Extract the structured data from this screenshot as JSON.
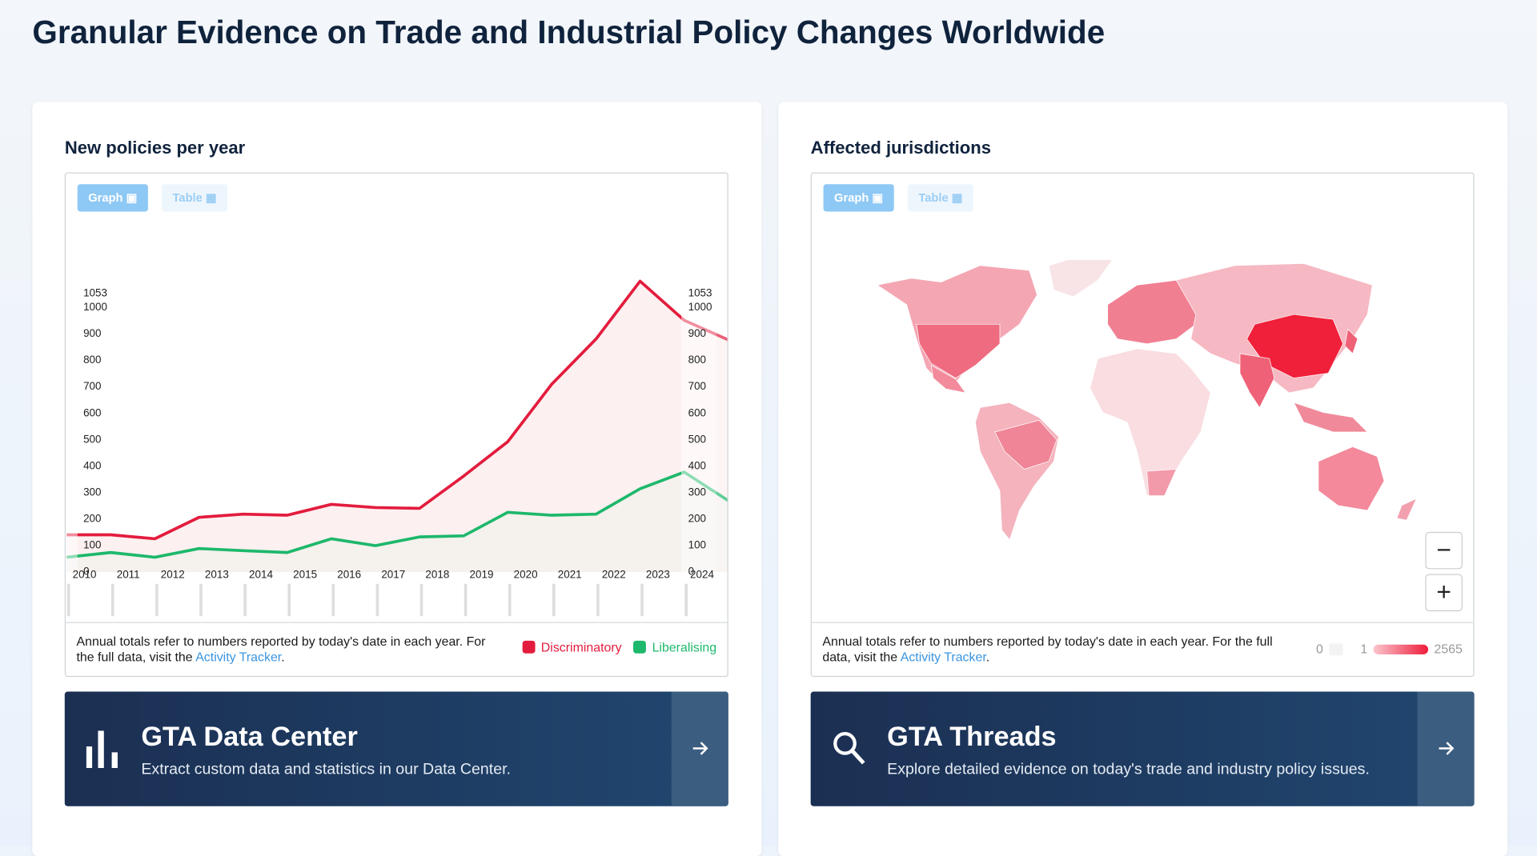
{
  "header": {
    "title": "Granular Evidence on Trade and Industrial Policy Changes Worldwide"
  },
  "chart_data": {
    "type": "line",
    "title": "New policies per year",
    "categories": [
      "2010",
      "2011",
      "2012",
      "2013",
      "2014",
      "2015",
      "2016",
      "2017",
      "2018",
      "2019",
      "2020",
      "2021",
      "2022",
      "2023",
      "2024",
      null
    ],
    "series": [
      {
        "name": "Discriminatory",
        "color": "#e31c3d",
        "values": [
          141,
          141,
          126,
          207,
          219,
          215,
          256,
          244,
          241,
          363,
          493,
          711,
          881,
          1100,
          952,
          878
        ]
      },
      {
        "name": "Liberalising",
        "color": "#1db86b",
        "values": [
          56,
          74,
          56,
          89,
          81,
          74,
          126,
          100,
          133,
          137,
          226,
          215,
          219,
          315,
          378,
          270
        ]
      }
    ],
    "ylim": [
      0,
      1053
    ],
    "yticks": [
      0,
      100,
      200,
      300,
      400,
      500,
      600,
      700,
      800,
      900,
      1000,
      1053
    ],
    "grid": false
  },
  "left_panel": {
    "tabs": [
      "Graph",
      "Table"
    ],
    "note_text": "Annual totals refer to numbers reported by today's date in each year. For the full data, visit the",
    "note_link": "Activity Tracker",
    "note_end": "."
  },
  "data_center": {
    "title": "GTA Data Center",
    "description": "Extract custom data and statistics in our Data Center."
  },
  "map_panel": {
    "title": "Affected jurisdictions",
    "tabs": [
      "Graph",
      "Table"
    ],
    "note_text": "Annual totals refer to numbers reported by today's date in each year. For the full data, visit the",
    "note_link": "Activity Tracker",
    "note_end": ".",
    "zoom": [
      "−",
      "+"
    ],
    "legend": [
      "0",
      "1",
      "2565"
    ]
  },
  "threads": {
    "title": "GTA Threads",
    "description": "Explore detailed evidence on today's trade and industry policy issues."
  }
}
